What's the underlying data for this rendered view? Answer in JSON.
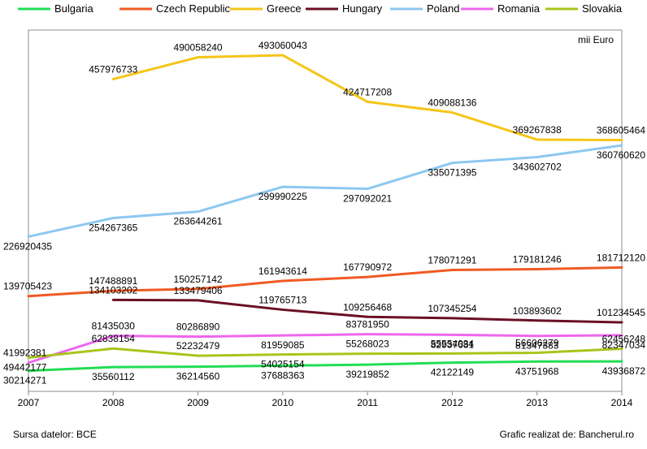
{
  "chart_data": {
    "type": "line",
    "title": "",
    "unit_label": "mii Euro",
    "xlabel": "",
    "ylabel": "",
    "x": [
      "2007",
      "2008",
      "2009",
      "2010",
      "2011",
      "2012",
      "2013",
      "2014"
    ],
    "ylim": [
      0,
      530000000
    ],
    "grid": false,
    "legend_position": "top",
    "series": [
      {
        "name": "Bulgaria",
        "color": "#22dd55",
        "values": [
          30214271,
          35560112,
          36214560,
          37688363,
          39219852,
          42122149,
          43751968,
          43936872
        ],
        "labels": [
          "30214271",
          "35560112",
          "36214560",
          "37688363",
          "39219852",
          "42122149",
          "43751968",
          "43936872"
        ]
      },
      {
        "name": "Czech Republic",
        "color": "#f05a22",
        "values": [
          139705423,
          147488891,
          150257142,
          161943614,
          167790972,
          178071291,
          179181246,
          181712120
        ],
        "labels": [
          "139705423",
          "147488891",
          "150257142",
          "161943614",
          "167790972",
          "178071291",
          "179181246",
          "181712120"
        ]
      },
      {
        "name": "Greece",
        "color": "#f5c518",
        "values": [
          null,
          457976733,
          490058240,
          493060043,
          424717208,
          409088136,
          369267838,
          368605464
        ],
        "labels": [
          null,
          "457976733",
          "490058240",
          "493060043",
          "424717208",
          "409088136",
          "369267838",
          "368605464"
        ]
      },
      {
        "name": "Hungary",
        "color": "#6b0f24",
        "values": [
          null,
          134103202,
          133479406,
          119765713,
          109256468,
          107345254,
          103893602,
          101234545
        ],
        "labels": [
          null,
          "134103202",
          "133479406",
          "119765713",
          "109256468",
          "107345254",
          "103893602",
          "101234545"
        ]
      },
      {
        "name": "Poland",
        "color": "#8cc8f0",
        "values": [
          226920435,
          254267365,
          263644261,
          299990225,
          297092021,
          335071395,
          343602702,
          360760620
        ],
        "labels": [
          "226920435",
          "254267365",
          "263644261",
          "299990225",
          "297092021",
          "335071395",
          "343602702",
          "360760620"
        ]
      },
      {
        "name": "Romania",
        "color": "#ee66ee",
        "values": [
          41992381,
          81435030,
          80286890,
          81959085,
          83781950,
          82937681,
          81347383,
          82347034
        ],
        "labels": [
          "41992381",
          "81435030",
          "80286890",
          "81959085",
          "83781950",
          "82937681",
          "81347383",
          "82347034"
        ]
      },
      {
        "name": "Slovakia",
        "color": "#aac41a",
        "values": [
          49442177,
          62838154,
          52232479,
          54025154,
          55268023,
          55554034,
          56606279,
          62456248
        ],
        "labels": [
          "49442177",
          "62838154",
          "52232479",
          "54025154",
          "55268023",
          "55554034",
          "56606279",
          "62456248"
        ]
      }
    ]
  },
  "footer": {
    "source": "Sursa datelor: BCE",
    "credit": "Grafic realizat de: Bancherul.ro"
  }
}
